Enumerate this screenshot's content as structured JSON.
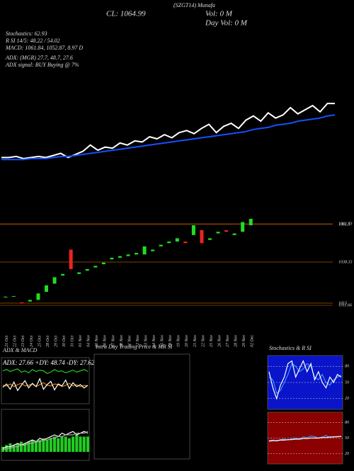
{
  "header": {
    "top_note": "(SZGT14) Munafa",
    "close": "CL: 1064.99",
    "vol": "Vol: 0 M",
    "day_vol": "Day Vol: 0 M",
    "stoch": "Stochastics: 62.93",
    "rsi": "R  SI 14/5: 48.22 / 54.02",
    "macd": "MACD: 1061.84, 1052.87, 8.97 D",
    "adx": "ADX:  (MGR) 27.7, 48.7, 27.6",
    "adx_signal": "ADX signal:  BUY Buying @ 7%"
  },
  "chart_data": [
    {
      "type": "line",
      "ylim": [
        1000,
        1075
      ],
      "series": [
        {
          "color": "#ffffff",
          "values": [
            1012,
            1012,
            1013,
            1011,
            1012,
            1013,
            1012,
            1014,
            1016,
            1012,
            1015,
            1018,
            1024,
            1019,
            1022,
            1021,
            1026,
            1024,
            1028,
            1027,
            1032,
            1030,
            1034,
            1031,
            1036,
            1038,
            1035,
            1040,
            1044,
            1036,
            1042,
            1045,
            1040,
            1048,
            1052,
            1047,
            1055,
            1050,
            1053,
            1060,
            1054,
            1058,
            1062,
            1056,
            1064,
            1064
          ]
        },
        {
          "color": "#1450ff",
          "values": [
            1010,
            1010,
            1010,
            1010,
            1011,
            1011,
            1011,
            1012,
            1013,
            1013,
            1014,
            1015,
            1016,
            1017,
            1018,
            1019,
            1020,
            1021,
            1022,
            1023,
            1024,
            1025,
            1026,
            1027,
            1028,
            1029,
            1030,
            1031,
            1032,
            1033,
            1034,
            1035,
            1036,
            1037,
            1039,
            1040,
            1041,
            1043,
            1044,
            1045,
            1047,
            1048,
            1049,
            1050,
            1052,
            1053
          ]
        }
      ]
    },
    {
      "type": "candlestick",
      "up_color": "#22dd22",
      "down_color": "#ee2222",
      "categories": [
        "21 Oct",
        "22 Oct",
        "23 Oct",
        "24 Oct",
        "25 Oct",
        "28 Oct",
        "29 Oct",
        "30 Oct",
        "31 Oct",
        "01 Nov",
        "04 Nov",
        "05 Nov",
        "06 Nov",
        "07 Nov",
        "08 Nov",
        "11 Nov",
        "12 Nov",
        "13 Nov",
        "14 Nov",
        "15 Nov",
        "18 Nov",
        "19 Nov",
        "20 Nov",
        "21 Nov",
        "22 Nov",
        "25 Nov",
        "26 Nov",
        "27 Nov",
        "28 Nov",
        "29 Nov",
        "02 Dec"
      ],
      "open": [
        1016.5,
        1017,
        1013.5,
        1014,
        1015,
        1020,
        1025,
        1030,
        1046,
        1031,
        1033,
        1035,
        1037,
        1040,
        1041,
        1042,
        1043,
        1043,
        1045,
        1048,
        1050,
        1051,
        1051,
        1055,
        1058,
        1052,
        1056,
        1058,
        1055,
        1057,
        1061
      ],
      "close": [
        1017,
        1017.4,
        1012.8,
        1015,
        1019,
        1024,
        1029,
        1031,
        1034,
        1032,
        1034,
        1036,
        1038,
        1041,
        1042,
        1043,
        1044,
        1048,
        1046,
        1049,
        1051,
        1053,
        1050,
        1061,
        1050,
        1053,
        1057,
        1057,
        1056,
        1063,
        1064.99
      ],
      "ylim": [
        1003.4,
        1068.9
      ],
      "yticks": [
        1061.93,
        1061.5,
        1038.33,
        1013,
        1011.66
      ],
      "grid_color": "#aa5500"
    },
    {
      "type": "line",
      "title": "ADX  & MACD",
      "subtitle": "ADX: 27.66  +DY: 48.74  -DY: 27.62",
      "ylim": [
        0,
        70
      ],
      "series": [
        {
          "color": "#22cc22",
          "values": [
            50,
            52,
            49,
            51,
            53,
            48,
            50,
            47,
            52,
            49,
            51,
            50,
            46,
            48,
            52,
            49,
            50,
            47,
            49,
            51,
            48,
            50,
            52,
            49
          ]
        },
        {
          "color": "#dd7700",
          "values": [
            28,
            27,
            30,
            26,
            29,
            31,
            27,
            28,
            30,
            26,
            29,
            32,
            28,
            27,
            30,
            29,
            26,
            28,
            31,
            27,
            29,
            26,
            28,
            27
          ]
        },
        {
          "color": "#ffffff",
          "values": [
            25,
            30,
            22,
            33,
            20,
            28,
            35,
            24,
            31,
            26,
            38,
            22,
            29,
            34,
            21,
            30,
            27,
            36,
            23,
            32,
            26,
            29,
            24,
            28
          ]
        }
      ]
    },
    {
      "type": "line",
      "ylim": [
        -5,
        25
      ],
      "series": [
        {
          "color": "#22cc22",
          "kind": "bar",
          "values": [
            3,
            4,
            5,
            4,
            5,
            6,
            5,
            6,
            7,
            6,
            7,
            8,
            7,
            8,
            9,
            8,
            9,
            9,
            8,
            9,
            10,
            9,
            9,
            9
          ]
        },
        {
          "color": "#ffffff",
          "values": [
            2,
            3,
            3,
            4,
            5,
            4,
            5,
            6,
            7,
            6,
            8,
            7,
            8,
            9,
            10,
            9,
            11,
            10,
            11,
            12,
            10,
            11,
            12,
            11
          ]
        },
        {
          "color": "#aaaaaa",
          "values": [
            1,
            2,
            2,
            3,
            3,
            4,
            4,
            5,
            5,
            6,
            6,
            7,
            7,
            8,
            8,
            9,
            9,
            10,
            10,
            10,
            11,
            11,
            11,
            12
          ]
        }
      ]
    },
    {
      "type": "empty",
      "title": "Intra Day Trading Price & MR                SI"
    },
    {
      "type": "line",
      "title": "Stochastics & R                SI",
      "background": "#0a14c8",
      "ylim": [
        0,
        100
      ],
      "yticks": [
        80,
        50,
        20
      ],
      "series": [
        {
          "color": "#3399ff",
          "values": [
            60,
            55,
            30,
            35,
            50,
            65,
            85,
            80,
            70,
            75,
            85,
            80,
            60,
            55,
            65,
            50,
            45,
            55,
            60,
            62.93
          ]
        },
        {
          "color": "#ffffff",
          "values": [
            70,
            40,
            20,
            45,
            60,
            85,
            90,
            60,
            75,
            90,
            70,
            85,
            55,
            70,
            50,
            40,
            60,
            50,
            65,
            60
          ]
        }
      ]
    },
    {
      "type": "line",
      "background": "#8b0000",
      "ylim": [
        0,
        100
      ],
      "yticks": [
        80,
        50,
        20
      ],
      "series": [
        {
          "color": "#3399ff",
          "values": [
            45,
            46,
            44,
            47,
            48,
            46,
            49,
            50,
            48,
            52,
            51,
            54,
            53,
            50,
            52,
            55,
            51,
            53,
            52,
            54.02
          ]
        },
        {
          "color": "#ffffff",
          "values": [
            44,
            45,
            45,
            46,
            46,
            47,
            47,
            48,
            48,
            49,
            49,
            50,
            50,
            50,
            51,
            51,
            52,
            52,
            53,
            53
          ]
        }
      ]
    }
  ]
}
